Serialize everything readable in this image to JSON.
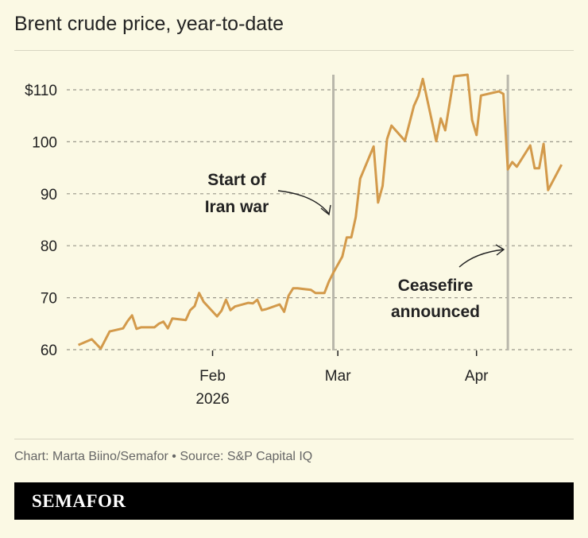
{
  "title": "Brent crude price, year-to-date",
  "footer": "Chart: Marta Biino/Semafor • Source: S&P Capital IQ",
  "brand": "SEMAFOR",
  "chart_data": {
    "type": "line",
    "title": "Brent crude price, year-to-date",
    "xlabel": "",
    "ylabel": "",
    "x_units": "day of year 2026",
    "ylim": [
      60,
      113
    ],
    "xlim": [
      1,
      112
    ],
    "y_ticks": [
      {
        "v": 60,
        "label": "60"
      },
      {
        "v": 70,
        "label": "70"
      },
      {
        "v": 80,
        "label": "80"
      },
      {
        "v": 90,
        "label": "90"
      },
      {
        "v": 100,
        "label": "100"
      },
      {
        "v": 110,
        "label": "$110"
      }
    ],
    "x_ticks": [
      {
        "v": 32,
        "label": "Feb",
        "sub": "2026"
      },
      {
        "v": 60,
        "label": "Mar",
        "sub": ""
      },
      {
        "v": 91,
        "label": "Apr",
        "sub": ""
      }
    ],
    "grid": true,
    "color": "#d39a4b",
    "series": [
      {
        "name": "Brent crude",
        "x": [
          2,
          5,
          7,
          9,
          12,
          13,
          14,
          15,
          16,
          19,
          20,
          21,
          22,
          23,
          26,
          27,
          28,
          29,
          30,
          33,
          34,
          35,
          36,
          37,
          40,
          41,
          42,
          43,
          44,
          47,
          48,
          49,
          50,
          51,
          54,
          55,
          57,
          58,
          59,
          61,
          62,
          63,
          64,
          65,
          68,
          69,
          70,
          71,
          72,
          75,
          77,
          78,
          79,
          82,
          83,
          84,
          86,
          89,
          90,
          91,
          92,
          96,
          97,
          98,
          99,
          100,
          103,
          104,
          105,
          106,
          107,
          110
        ],
        "values": [
          60.9,
          62.0,
          60.2,
          63.5,
          64.1,
          65.5,
          66.6,
          64.0,
          64.3,
          64.3,
          65.0,
          65.4,
          64.1,
          66.0,
          65.7,
          67.6,
          68.4,
          70.9,
          69.2,
          66.4,
          67.5,
          69.6,
          67.6,
          68.3,
          69.0,
          68.9,
          69.6,
          67.6,
          67.8,
          68.7,
          67.3,
          70.4,
          71.8,
          71.8,
          71.5,
          70.9,
          70.9,
          73.1,
          74.8,
          77.9,
          81.6,
          81.6,
          85.5,
          92.9,
          99.1,
          88.3,
          91.5,
          100.5,
          103.1,
          100.2,
          106.9,
          108.8,
          112.1,
          100.1,
          104.5,
          102.2,
          112.6,
          112.9,
          104.2,
          101.3,
          108.9,
          109.7,
          109.2,
          94.7,
          96.1,
          95.2,
          99.3,
          94.9,
          94.9,
          99.6,
          90.7,
          95.6
        ]
      }
    ],
    "annotations": [
      {
        "x": 59,
        "lines": [
          "Start of",
          "Iran war"
        ]
      },
      {
        "x": 98,
        "lines": [
          "Ceasefire",
          "announced"
        ]
      }
    ]
  }
}
